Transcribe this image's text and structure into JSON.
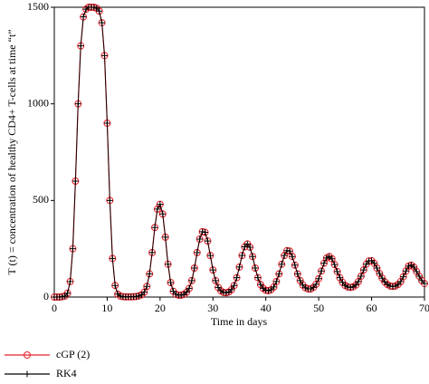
{
  "chart_data": {
    "type": "line",
    "ylabel": "T (t) = concentration of healthy CD4+ T-cells at time “t”",
    "xlabel": "Time in days",
    "xlim": [
      0,
      70
    ],
    "xticks": [
      0,
      10,
      20,
      30,
      40,
      50,
      60,
      70
    ],
    "ylim": [
      0,
      1500
    ],
    "yticks": [
      0,
      500,
      1000,
      1500
    ],
    "x": [
      0,
      0.5,
      1,
      1.5,
      2,
      2.5,
      3,
      3.5,
      4,
      4.5,
      5,
      5.5,
      6,
      6.5,
      7,
      7.5,
      8,
      8.5,
      9,
      9.5,
      10,
      10.5,
      11,
      11.5,
      12,
      12.5,
      13,
      13.5,
      14,
      14.5,
      15,
      15.5,
      16,
      16.5,
      17,
      17.5,
      18,
      18.5,
      19,
      19.5,
      20,
      20.5,
      21,
      21.5,
      22,
      22.5,
      23,
      23.5,
      24,
      24.5,
      25,
      25.5,
      26,
      26.5,
      27,
      27.5,
      28,
      28.5,
      29,
      29.5,
      30,
      30.5,
      31,
      31.5,
      32,
      32.5,
      33,
      33.5,
      34,
      34.5,
      35,
      35.5,
      36,
      36.5,
      37,
      37.5,
      38,
      38.5,
      39,
      39.5,
      40,
      40.5,
      41,
      41.5,
      42,
      42.5,
      43,
      43.5,
      44,
      44.5,
      45,
      45.5,
      46,
      46.5,
      47,
      47.5,
      48,
      48.5,
      49,
      49.5,
      50,
      50.5,
      51,
      51.5,
      52,
      52.5,
      53,
      53.5,
      54,
      54.5,
      55,
      55.5,
      56,
      56.5,
      57,
      57.5,
      58,
      58.5,
      59,
      59.5,
      60,
      60.5,
      61,
      61.5,
      62,
      62.5,
      63,
      63.5,
      64,
      64.5,
      65,
      65.5,
      66,
      66.5,
      67,
      67.5,
      68,
      68.5,
      69,
      69.5,
      70
    ],
    "series": [
      {
        "name": "cGP (2)",
        "color": "#e8202a",
        "marker": "circle",
        "values": [
          0,
          0,
          0,
          2,
          5,
          20,
          80,
          250,
          600,
          1000,
          1300,
          1450,
          1490,
          1500,
          1500,
          1500,
          1495,
          1480,
          1420,
          1250,
          900,
          500,
          200,
          60,
          15,
          5,
          2,
          1,
          1,
          1,
          2,
          3,
          6,
          12,
          25,
          55,
          120,
          230,
          360,
          455,
          480,
          430,
          310,
          170,
          75,
          30,
          14,
          10,
          10,
          14,
          25,
          45,
          85,
          150,
          230,
          300,
          338,
          335,
          290,
          215,
          140,
          85,
          50,
          32,
          24,
          22,
          26,
          38,
          60,
          100,
          155,
          215,
          260,
          275,
          258,
          210,
          150,
          100,
          65,
          45,
          35,
          33,
          38,
          52,
          80,
          120,
          170,
          215,
          240,
          238,
          210,
          165,
          120,
          85,
          62,
          48,
          42,
          42,
          50,
          66,
          95,
          135,
          175,
          202,
          210,
          198,
          168,
          132,
          100,
          76,
          60,
          52,
          50,
          53,
          62,
          80,
          108,
          140,
          170,
          187,
          188,
          175,
          150,
          122,
          98,
          78,
          65,
          57,
          55,
          57,
          65,
          80,
          105,
          135,
          160,
          165,
          155,
          132,
          108,
          85,
          70
        ]
      },
      {
        "name": "RK4",
        "color": "#000000",
        "marker": "plus",
        "values": [
          0,
          0,
          0,
          2,
          5,
          20,
          80,
          250,
          600,
          1000,
          1300,
          1450,
          1490,
          1500,
          1500,
          1500,
          1495,
          1480,
          1420,
          1250,
          900,
          500,
          200,
          60,
          15,
          5,
          2,
          1,
          1,
          1,
          2,
          3,
          6,
          12,
          25,
          55,
          120,
          230,
          360,
          455,
          480,
          430,
          310,
          170,
          75,
          30,
          14,
          10,
          10,
          14,
          25,
          45,
          85,
          150,
          230,
          300,
          338,
          335,
          290,
          215,
          140,
          85,
          50,
          32,
          24,
          22,
          26,
          38,
          60,
          100,
          155,
          215,
          260,
          275,
          258,
          210,
          150,
          100,
          65,
          45,
          35,
          33,
          38,
          52,
          80,
          120,
          170,
          215,
          240,
          238,
          210,
          165,
          120,
          85,
          62,
          48,
          42,
          42,
          50,
          66,
          95,
          135,
          175,
          202,
          210,
          198,
          168,
          132,
          100,
          76,
          60,
          52,
          50,
          53,
          62,
          80,
          108,
          140,
          170,
          187,
          188,
          175,
          150,
          122,
          98,
          78,
          65,
          57,
          55,
          57,
          65,
          80,
          105,
          135,
          160,
          165,
          155,
          132,
          108,
          85,
          70
        ]
      }
    ]
  }
}
